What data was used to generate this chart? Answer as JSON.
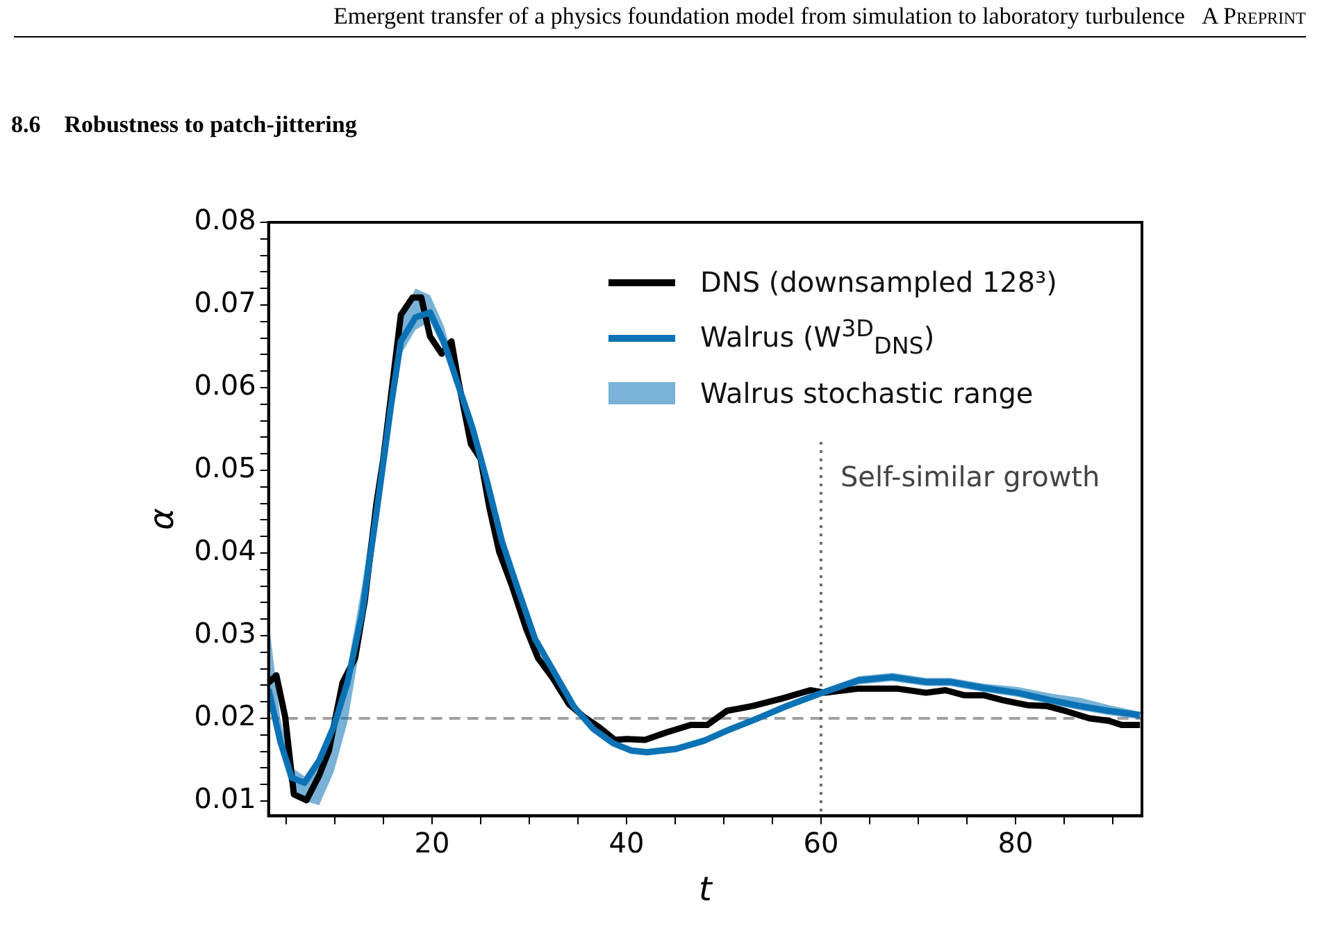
{
  "chart_data": {
    "type": "line",
    "title": "8.6    Robustness to patch-jittering",
    "annotations": [
      "Emergent transfer of a physics foundation model from simulation to laboratory turbulence",
      "A Preprint",
      "Walrus stochastic range"
    ],
    "xlabel": "t",
    "ylabel": "α",
    "xlim": [
      3.2,
      93
    ],
    "ylim": [
      0.0082,
      0.08
    ],
    "xticks": [
      {
        "value": 5,
        "label": null
      },
      {
        "value": 10,
        "label": null
      },
      {
        "value": 15,
        "label": null
      },
      20,
      {
        "value": 25,
        "label": null
      },
      {
        "value": 30,
        "label": null
      },
      {
        "value": 35,
        "label": null
      },
      40,
      {
        "value": 45,
        "label": null
      },
      {
        "value": 50,
        "label": null
      },
      {
        "value": 55,
        "label": null
      },
      60,
      {
        "value": 65,
        "label": null
      },
      {
        "value": 70,
        "label": null
      },
      {
        "value": 75,
        "label": null
      },
      80,
      {
        "value": 85,
        "label": null
      },
      {
        "value": 90,
        "label": null
      }
    ],
    "yticks": [
      0.01,
      {
        "value": 0.012,
        "label": null
      },
      {
        "value": 0.014,
        "label": null
      },
      {
        "value": 0.016,
        "label": null
      },
      {
        "value": 0.018,
        "label": null
      },
      0.02,
      {
        "value": 0.022,
        "label": null
      },
      {
        "value": 0.024,
        "label": null
      },
      {
        "value": 0.026,
        "label": null
      },
      {
        "value": 0.028,
        "label": null
      },
      0.03,
      {
        "value": 0.032,
        "label": null
      },
      {
        "value": 0.034,
        "label": null
      },
      {
        "value": 0.036,
        "label": null
      },
      {
        "value": 0.038,
        "label": null
      },
      0.04,
      {
        "value": 0.042,
        "label": null
      },
      {
        "value": 0.044,
        "label": null
      },
      {
        "value": 0.046,
        "label": null
      },
      {
        "value": 0.048,
        "label": null
      },
      0.05,
      {
        "value": 0.052,
        "label": null
      },
      {
        "value": 0.054,
        "label": null
      },
      {
        "value": 0.056,
        "label": null
      },
      {
        "value": 0.058,
        "label": null
      },
      0.06,
      {
        "value": 0.062,
        "label": null
      },
      {
        "value": 0.064,
        "label": null
      },
      {
        "value": 0.066,
        "label": null
      },
      {
        "value": 0.068,
        "label": null
      },
      0.07,
      {
        "value": 0.072,
        "label": null
      },
      {
        "value": 0.074,
        "label": null
      },
      {
        "value": 0.076,
        "label": null
      },
      {
        "value": 0.078,
        "label": null
      },
      0.08
    ],
    "grid": false,
    "legend": "top right",
    "line_style": "solid",
    "marker": "none",
    "ref_lines": [
      {
        "axis": "y",
        "value": 0.02,
        "color": "#a0a0a0",
        "line_style": "dashed"
      },
      {
        "axis": "x",
        "value": 60,
        "label": "Self-similar growth",
        "color": "#6e6e6e",
        "line_style": "dotted"
      }
    ],
    "series": [
      {
        "name": "Walrus (W$^{3D}$$_{DNS}$)",
        "type": "line",
        "color": "#0b72b5",
        "x": [
          3.2,
          4.4,
          5.6,
          6.9,
          8.4,
          9.9,
          11.3,
          12.8,
          14.3,
          15.8,
          16.8,
          18.3,
          19.8,
          21.2,
          22.7,
          24.2,
          25.7,
          27.2,
          28.7,
          30.6,
          32.6,
          34.6,
          36.6,
          38.6,
          40.5,
          42.1,
          45.1,
          48.0,
          50.5,
          53.5,
          56.5,
          59.9,
          63.9,
          67.3,
          70.8,
          73.3,
          76.7,
          80.2,
          83.6,
          86.6,
          89.6,
          92.8
        ],
        "values": [
          0.0235,
          0.0172,
          0.0128,
          0.0122,
          0.0149,
          0.019,
          0.0243,
          0.0326,
          0.0449,
          0.0579,
          0.0656,
          0.0685,
          0.0691,
          0.0656,
          0.0603,
          0.055,
          0.0485,
          0.0414,
          0.0361,
          0.0296,
          0.0255,
          0.0214,
          0.0187,
          0.017,
          0.0161,
          0.0159,
          0.0163,
          0.0173,
          0.0186,
          0.02,
          0.0215,
          0.023,
          0.0246,
          0.025,
          0.0244,
          0.0244,
          0.0237,
          0.0231,
          0.0222,
          0.0215,
          0.0209,
          0.0204
        ],
        "lower": [
          0.0225,
          0.016,
          0.0112,
          0.01,
          0.0095,
          0.0135,
          0.0195,
          0.03,
          0.043,
          0.056,
          0.064,
          0.067,
          0.068,
          0.0645,
          0.0595,
          0.0542,
          0.0478,
          0.0407,
          0.0355,
          0.029,
          0.025,
          0.021,
          0.0183,
          0.0166,
          0.0157,
          0.0155,
          0.0159,
          0.0169,
          0.0182,
          0.0196,
          0.0211,
          0.0226,
          0.0241,
          0.0245,
          0.0239,
          0.0239,
          0.0232,
          0.0226,
          0.0217,
          0.021,
          0.0204,
          0.0199
        ],
        "upper": [
          0.032,
          0.02,
          0.014,
          0.013,
          0.0155,
          0.02,
          0.026,
          0.036,
          0.048,
          0.06,
          0.068,
          0.072,
          0.0712,
          0.0675,
          0.0615,
          0.0562,
          0.0495,
          0.0422,
          0.0368,
          0.0302,
          0.026,
          0.0218,
          0.0191,
          0.0174,
          0.0165,
          0.0163,
          0.0167,
          0.0177,
          0.019,
          0.0204,
          0.0219,
          0.0234,
          0.0251,
          0.0255,
          0.0249,
          0.0249,
          0.0242,
          0.0238,
          0.023,
          0.0225,
          0.0216,
          0.0208
        ]
      },
      {
        "name": "DNS (downsampled 128³)",
        "type": "line",
        "color": "#000000",
        "x": [
          3.2,
          4.0,
          4.9,
          5.8,
          7.1,
          8.4,
          9.4,
          10.8,
          12.1,
          13.1,
          14.3,
          15.0,
          16.8,
          18.0,
          18.9,
          19.8,
          21.0,
          22.0,
          22.7,
          24.0,
          25.0,
          25.9,
          26.9,
          28.2,
          29.7,
          30.9,
          32.4,
          34.1,
          35.6,
          37.1,
          38.8,
          40.0,
          41.9,
          44.1,
          46.6,
          48.3,
          50.3,
          53.0,
          56.0,
          58.9,
          60.4,
          63.9,
          67.8,
          70.8,
          72.8,
          74.7,
          76.7,
          78.7,
          81.2,
          83.2,
          85.1,
          87.6,
          89.6,
          90.9,
          92.8
        ],
        "values": [
          0.0243,
          0.0252,
          0.0202,
          0.0108,
          0.0101,
          0.0131,
          0.0161,
          0.0243,
          0.0273,
          0.0343,
          0.0461,
          0.0514,
          0.0688,
          0.0709,
          0.0709,
          0.0662,
          0.0641,
          0.0656,
          0.0609,
          0.0532,
          0.0514,
          0.0455,
          0.0402,
          0.0361,
          0.0308,
          0.0273,
          0.0249,
          0.0217,
          0.0202,
          0.019,
          0.0174,
          0.0175,
          0.0174,
          0.0183,
          0.0192,
          0.0192,
          0.0209,
          0.0215,
          0.0224,
          0.0234,
          0.0231,
          0.0236,
          0.0236,
          0.0231,
          0.0234,
          0.0228,
          0.0228,
          0.0222,
          0.0216,
          0.0215,
          0.0209,
          0.02,
          0.0197,
          0.0192,
          0.0192
        ]
      }
    ]
  }
}
